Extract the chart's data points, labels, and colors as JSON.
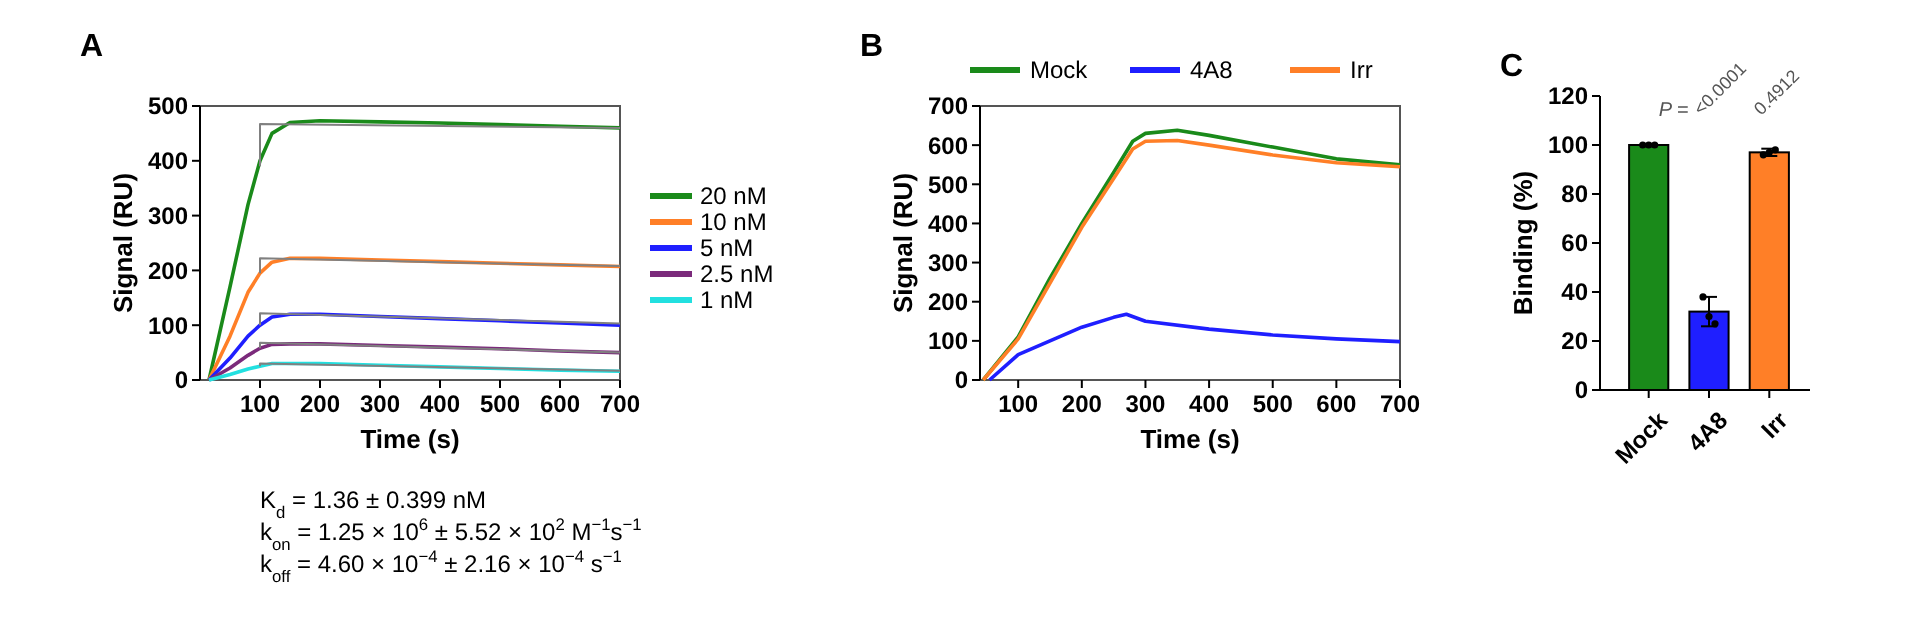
{
  "chart_data": [
    {
      "type": "line",
      "title": "A",
      "xlabel": "Time (s)",
      "ylabel": "Signal (RU)",
      "xlim": [
        0,
        700
      ],
      "ylim": [
        0,
        500
      ],
      "xticks": [
        100,
        200,
        300,
        400,
        500,
        600,
        700
      ],
      "yticks": [
        0,
        100,
        200,
        300,
        400,
        500
      ],
      "legend": "right",
      "marker": "none",
      "series": [
        {
          "name": "20 nM",
          "color": "#1a8a1a",
          "x": [
            15,
            50,
            80,
            100,
            120,
            150,
            200,
            300,
            400,
            500,
            600,
            700
          ],
          "values": [
            0,
            170,
            320,
            400,
            450,
            470,
            473,
            471,
            469,
            466,
            463,
            460
          ]
        },
        {
          "name": "10 nM",
          "color": "#ff7f27",
          "x": [
            15,
            50,
            80,
            100,
            120,
            150,
            200,
            300,
            400,
            500,
            600,
            700
          ],
          "values": [
            0,
            80,
            160,
            195,
            215,
            222,
            222,
            219,
            216,
            213,
            210,
            207
          ]
        },
        {
          "name": "5 nM",
          "color": "#1f1fff",
          "x": [
            15,
            50,
            80,
            100,
            120,
            150,
            200,
            300,
            400,
            500,
            600,
            700
          ],
          "values": [
            0,
            40,
            80,
            100,
            115,
            120,
            120,
            116,
            112,
            108,
            104,
            100
          ]
        },
        {
          "name": "2.5 nM",
          "color": "#7b2a7b",
          "x": [
            15,
            50,
            80,
            100,
            120,
            150,
            200,
            300,
            400,
            500,
            600,
            700
          ],
          "values": [
            0,
            22,
            45,
            58,
            65,
            66,
            66,
            63,
            60,
            57,
            53,
            50
          ]
        },
        {
          "name": "1 nM",
          "color": "#22e0e0",
          "x": [
            15,
            50,
            80,
            100,
            120,
            150,
            200,
            300,
            400,
            500,
            600,
            700
          ],
          "values": [
            0,
            10,
            20,
            25,
            30,
            30,
            30,
            27,
            24,
            21,
            18,
            16
          ]
        },
        {
          "color": "#808080",
          "x": [
            100,
            100,
            700
          ],
          "values": [
            390,
            467,
            460
          ]
        },
        {
          "color": "#808080",
          "x": [
            100,
            100,
            700
          ],
          "values": [
            195,
            222,
            208
          ]
        },
        {
          "color": "#808080",
          "x": [
            100,
            100,
            700
          ],
          "values": [
            100,
            122,
            103
          ]
        },
        {
          "color": "#808080",
          "x": [
            100,
            100,
            700
          ],
          "values": [
            58,
            68,
            50
          ]
        },
        {
          "color": "#808080",
          "x": [
            100,
            100,
            700
          ],
          "values": [
            25,
            30,
            17
          ]
        }
      ],
      "annotations": [
        "K$_{d}$ = 1.36 ± 0.399 nM",
        "k$_{on}$ = 1.25 × 10$^{6}$ ± 5.52 × 10$^{2}$ M$^{−1}$s$^{−1}$",
        "k$_{off}$ = 4.60 × 10$^{−4}$ ± 2.16 × 10$^{−4}$ s$^{−1}$"
      ]
    },
    {
      "type": "line",
      "title": "B",
      "xlabel": "Time (s)",
      "ylabel": "Signal (RU)",
      "xlim": [
        40,
        700
      ],
      "ylim": [
        0,
        700
      ],
      "xticks": [
        100,
        200,
        300,
        400,
        500,
        600,
        700
      ],
      "yticks": [
        0,
        100,
        200,
        300,
        400,
        500,
        600,
        700
      ],
      "legend": "top",
      "marker": "none",
      "series": [
        {
          "name": "Mock",
          "color": "#1a8a1a",
          "x": [
            45,
            100,
            150,
            200,
            250,
            280,
            300,
            350,
            400,
            500,
            600,
            700
          ],
          "values": [
            0,
            110,
            260,
            400,
            530,
            610,
            630,
            638,
            625,
            595,
            565,
            550
          ]
        },
        {
          "name": "4A8",
          "color": "#1f1fff",
          "x": [
            55,
            100,
            150,
            200,
            250,
            270,
            300,
            400,
            500,
            600,
            700
          ],
          "values": [
            0,
            65,
            100,
            135,
            160,
            168,
            150,
            130,
            115,
            105,
            98
          ]
        },
        {
          "name": "Irr",
          "color": "#ff7f27",
          "x": [
            45,
            100,
            200,
            250,
            280,
            300,
            350,
            400,
            500,
            600,
            700
          ],
          "values": [
            0,
            105,
            390,
            515,
            590,
            610,
            612,
            600,
            575,
            555,
            545
          ]
        }
      ]
    },
    {
      "type": "bar",
      "title": "C",
      "ylabel": "Binding (%)",
      "categories": [
        "Mock",
        "4A8",
        "Irr"
      ],
      "values": [
        100,
        32,
        97
      ],
      "colors": [
        "#1a8a1a",
        "#1f1fff",
        "#ff7f27"
      ],
      "errors": [
        0.5,
        6,
        1.5
      ],
      "ylim": [
        0,
        120
      ],
      "yticks": [
        0,
        20,
        40,
        60,
        80,
        100,
        120
      ],
      "series": [
        {
          "type": "scatter",
          "color": "#000000",
          "x": [
            "Mock",
            "Mock",
            "Mock",
            "4A8",
            "4A8",
            "4A8",
            "Irr",
            "Irr",
            "Irr"
          ],
          "values": [
            100,
            100,
            100,
            38,
            30,
            27,
            96,
            97,
            98
          ]
        }
      ],
      "marker": "circle",
      "annotations": [
        "P =",
        "<0.0001",
        "0.4912"
      ]
    }
  ]
}
